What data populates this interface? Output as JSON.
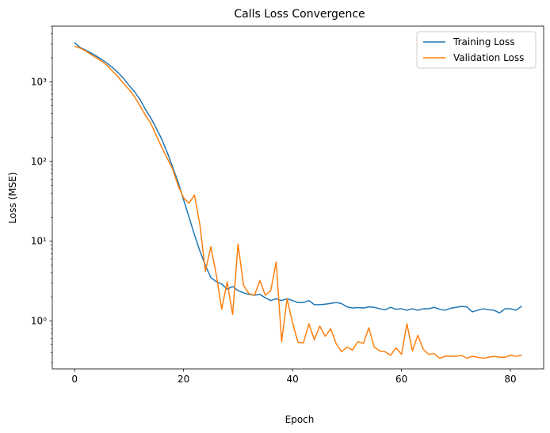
{
  "chart_data": {
    "type": "line",
    "title": "Calls Loss Convergence",
    "xlabel": "Epoch",
    "ylabel": "Loss (MSE)",
    "yscale": "log",
    "xlim": [
      -4.1,
      86.1
    ],
    "ylim": [
      0.25,
      5000
    ],
    "xticks": [
      0,
      20,
      40,
      60,
      80
    ],
    "xtick_labels": [
      "0",
      "20",
      "40",
      "60",
      "80"
    ],
    "yticks": [
      1,
      10,
      100,
      1000
    ],
    "ytick_labels": [
      "10⁰",
      "10¹",
      "10²",
      "10³"
    ],
    "grid": false,
    "legend_position": "top-right",
    "x": [
      0,
      1,
      2,
      3,
      4,
      5,
      6,
      7,
      8,
      9,
      10,
      11,
      12,
      13,
      14,
      15,
      16,
      17,
      18,
      19,
      20,
      21,
      22,
      23,
      24,
      25,
      26,
      27,
      28,
      29,
      30,
      31,
      32,
      33,
      34,
      35,
      36,
      37,
      38,
      39,
      40,
      41,
      42,
      43,
      44,
      45,
      46,
      47,
      48,
      49,
      50,
      51,
      52,
      53,
      54,
      55,
      56,
      57,
      58,
      59,
      60,
      61,
      62,
      63,
      64,
      65,
      66,
      67,
      68,
      69,
      70,
      71,
      72,
      73,
      74,
      75,
      76,
      77,
      78,
      79,
      80,
      81,
      82
    ],
    "series": [
      {
        "name": "Training Loss",
        "color": "#1f77b4",
        "values": [
          3100,
          2700,
          2500,
          2300,
          2100,
          1900,
          1700,
          1500,
          1300,
          1100,
          900,
          750,
          600,
          450,
          350,
          260,
          190,
          130,
          85,
          55,
          33,
          20,
          12,
          7.5,
          5,
          3.5,
          3.1,
          2.9,
          2.5,
          2.7,
          2.4,
          2.25,
          2.15,
          2.1,
          2.15,
          1.95,
          1.8,
          1.9,
          1.8,
          1.9,
          1.8,
          1.7,
          1.7,
          1.8,
          1.6,
          1.6,
          1.62,
          1.66,
          1.7,
          1.65,
          1.5,
          1.45,
          1.47,
          1.45,
          1.5,
          1.48,
          1.42,
          1.38,
          1.48,
          1.4,
          1.42,
          1.36,
          1.42,
          1.36,
          1.42,
          1.42,
          1.48,
          1.4,
          1.36,
          1.44,
          1.48,
          1.52,
          1.5,
          1.3,
          1.36,
          1.42,
          1.38,
          1.36,
          1.26,
          1.42,
          1.42,
          1.36,
          1.52
        ]
      },
      {
        "name": "Validation Loss",
        "color": "#ff7f0e",
        "values": [
          2800,
          2650,
          2450,
          2200,
          2000,
          1800,
          1600,
          1350,
          1150,
          950,
          800,
          650,
          500,
          380,
          300,
          210,
          150,
          110,
          80,
          50,
          35,
          30,
          38,
          16,
          4.2,
          8.5,
          3.8,
          1.4,
          3.1,
          1.2,
          9.2,
          2.8,
          2.2,
          2.1,
          3.2,
          2.1,
          2.4,
          5.5,
          0.55,
          1.9,
          0.95,
          0.54,
          0.53,
          0.92,
          0.58,
          0.86,
          0.64,
          0.8,
          0.52,
          0.41,
          0.47,
          0.43,
          0.55,
          0.52,
          0.82,
          0.47,
          0.42,
          0.41,
          0.37,
          0.46,
          0.38,
          0.92,
          0.42,
          0.66,
          0.44,
          0.38,
          0.39,
          0.34,
          0.36,
          0.36,
          0.36,
          0.37,
          0.34,
          0.36,
          0.35,
          0.34,
          0.35,
          0.36,
          0.35,
          0.35,
          0.37,
          0.36,
          0.37
        ]
      }
    ]
  }
}
